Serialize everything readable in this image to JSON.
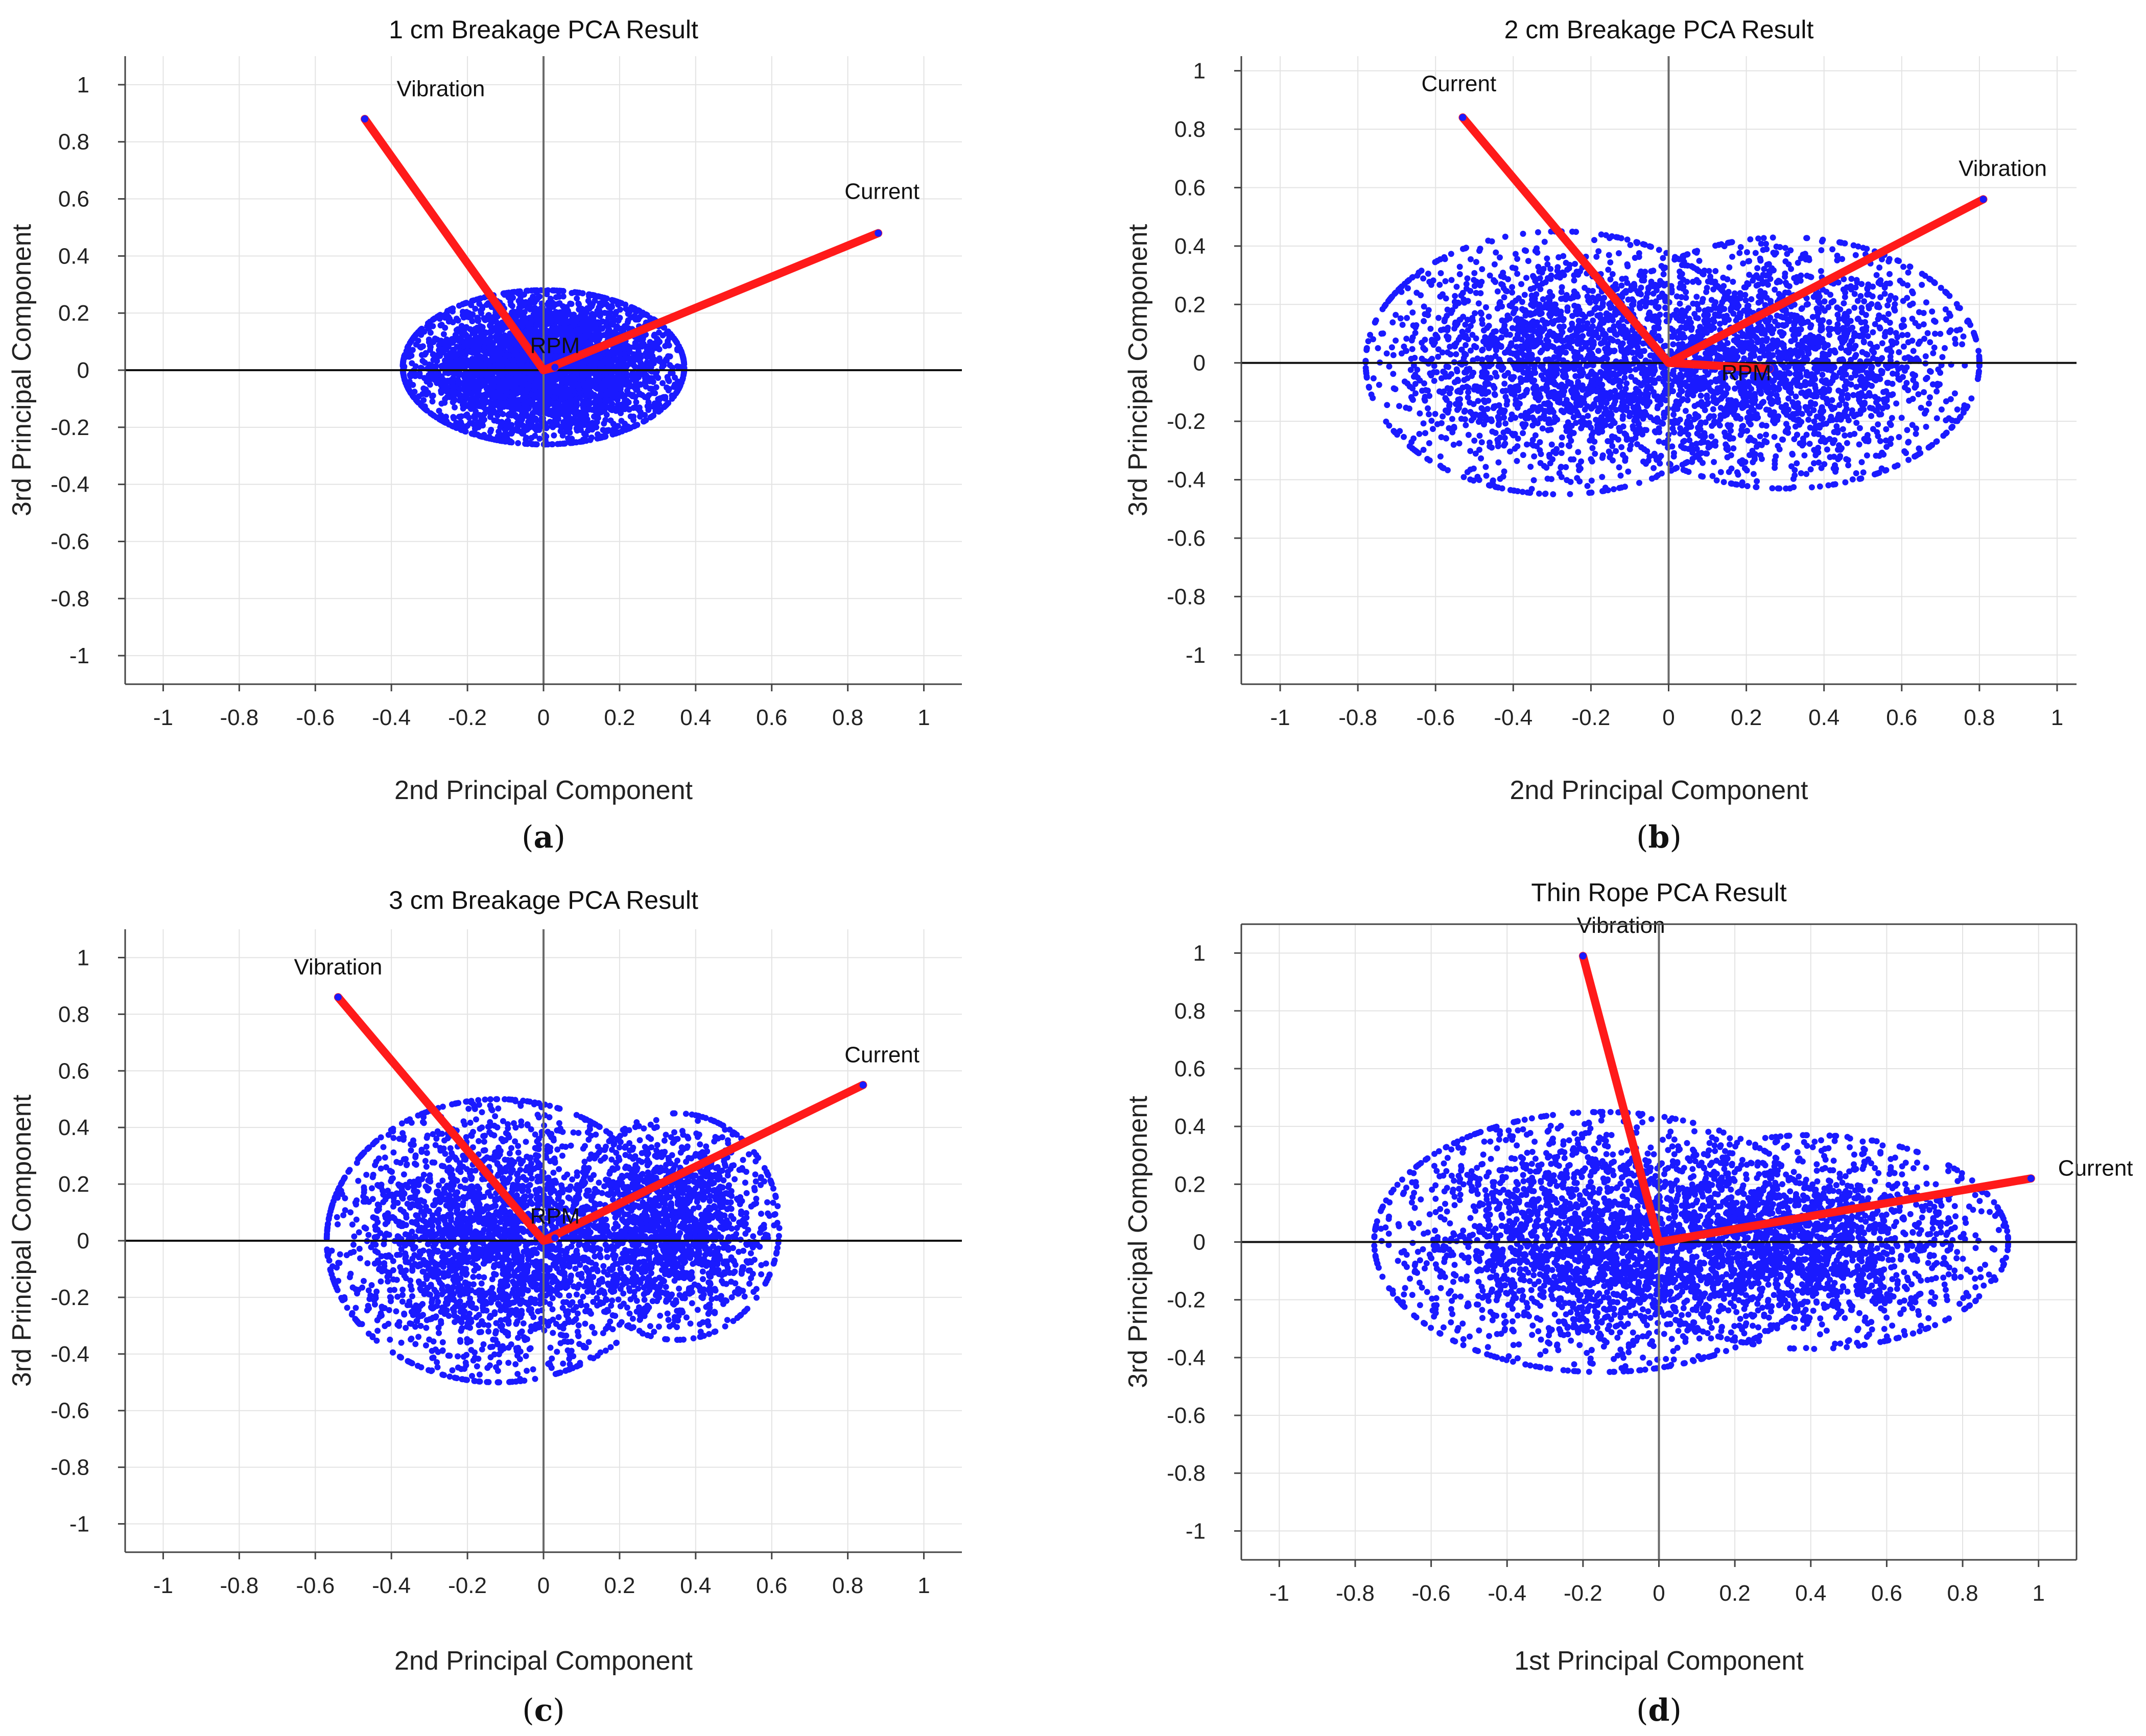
{
  "figure": {
    "colors": {
      "points": "#1a1aff",
      "loadings": "#ff1a1a",
      "axis_zero_vertical": "#6b6b6b",
      "axis_zero_horizontal": "#111111"
    }
  },
  "chart_data": [
    {
      "id": "a",
      "type": "scatter",
      "caption": "a",
      "title": "1 cm Breakage PCA Result",
      "xlabel": "2nd Principal Component",
      "ylabel": "3rd Principal Component",
      "xlim": [
        -1.1,
        1.1
      ],
      "ylim": [
        -1.1,
        1.1
      ],
      "xticks": [
        -1,
        -0.8,
        -0.6,
        -0.4,
        -0.2,
        0,
        0.2,
        0.4,
        0.6,
        0.8,
        1
      ],
      "yticks": [
        -1,
        -0.8,
        -0.6,
        -0.4,
        -0.2,
        0,
        0.2,
        0.4,
        0.6,
        0.8,
        1
      ],
      "cluster_ellipses": [
        {
          "cx": 0.0,
          "cy": 0.01,
          "rx": 0.37,
          "ry": 0.27,
          "weight": 1.0
        }
      ],
      "loadings": [
        {
          "name": "Vibration",
          "x": -0.47,
          "y": 0.88,
          "label_x": -0.27,
          "label_y": 0.96
        },
        {
          "name": "Current",
          "x": 0.88,
          "y": 0.48,
          "label_x": 0.89,
          "label_y": 0.6
        },
        {
          "name": "RPM",
          "x": 0.03,
          "y": 0.01,
          "label_x": 0.03,
          "label_y": 0.06
        }
      ]
    },
    {
      "id": "b",
      "type": "scatter",
      "caption": "b",
      "title": "2 cm Breakage PCA Result",
      "xlabel": "2nd Principal Component",
      "ylabel": "3rd Principal Component",
      "xlim": [
        -1.1,
        1.05
      ],
      "ylim": [
        -1.1,
        1.05
      ],
      "xticks": [
        -1,
        -0.8,
        -0.6,
        -0.4,
        -0.2,
        0,
        0.2,
        0.4,
        0.6,
        0.8,
        1
      ],
      "yticks": [
        -1,
        -0.8,
        -0.6,
        -0.4,
        -0.2,
        0,
        0.2,
        0.4,
        0.6,
        0.8,
        1
      ],
      "cluster_ellipses": [
        {
          "cx": -0.28,
          "cy": 0.0,
          "rx": 0.5,
          "ry": 0.45,
          "weight": 0.5
        },
        {
          "cx": 0.3,
          "cy": 0.0,
          "rx": 0.5,
          "ry": 0.43,
          "weight": 0.5
        }
      ],
      "loadings": [
        {
          "name": "Current",
          "x": -0.53,
          "y": 0.84,
          "label_x": -0.54,
          "label_y": 0.93
        },
        {
          "name": "Vibration",
          "x": 0.81,
          "y": 0.56,
          "label_x": 0.86,
          "label_y": 0.64
        },
        {
          "name": "RPM",
          "x": 0.26,
          "y": -0.02,
          "label_x": 0.2,
          "label_y": -0.06
        }
      ]
    },
    {
      "id": "c",
      "type": "scatter",
      "caption": "c",
      "title": "3 cm Breakage PCA Result",
      "xlabel": "2nd Principal Component",
      "ylabel": "3rd Principal Component",
      "xlim": [
        -1.1,
        1.1
      ],
      "ylim": [
        -1.1,
        1.1
      ],
      "xticks": [
        -1,
        -0.8,
        -0.6,
        -0.4,
        -0.2,
        0,
        0.2,
        0.4,
        0.6,
        0.8,
        1
      ],
      "yticks": [
        -1,
        -0.8,
        -0.6,
        -0.4,
        -0.2,
        0,
        0.2,
        0.4,
        0.6,
        0.8,
        1
      ],
      "cluster_ellipses": [
        {
          "cx": -0.12,
          "cy": 0.0,
          "rx": 0.45,
          "ry": 0.5,
          "weight": 0.65
        },
        {
          "cx": 0.35,
          "cy": 0.05,
          "rx": 0.27,
          "ry": 0.4,
          "weight": 0.35
        }
      ],
      "loadings": [
        {
          "name": "Vibration",
          "x": -0.54,
          "y": 0.86,
          "label_x": -0.54,
          "label_y": 0.94
        },
        {
          "name": "Current",
          "x": 0.84,
          "y": 0.55,
          "label_x": 0.89,
          "label_y": 0.63
        },
        {
          "name": "RPM",
          "x": 0.03,
          "y": 0.01,
          "label_x": 0.03,
          "label_y": 0.06
        }
      ]
    },
    {
      "id": "d",
      "type": "scatter",
      "caption": "d",
      "title": "Thin Rope PCA Result",
      "xlabel": "1st Principal Component",
      "ylabel": "3rd Principal Component",
      "xlim": [
        -1.1,
        1.1
      ],
      "ylim": [
        -1.1,
        1.1
      ],
      "xticks": [
        -1,
        -0.8,
        -0.6,
        -0.4,
        -0.2,
        0,
        0.2,
        0.4,
        0.6,
        0.8,
        1
      ],
      "yticks": [
        -1,
        -0.8,
        -0.6,
        -0.4,
        -0.2,
        0,
        0.2,
        0.4,
        0.6,
        0.8,
        1
      ],
      "cluster_ellipses": [
        {
          "cx": -0.15,
          "cy": 0.0,
          "rx": 0.6,
          "ry": 0.45,
          "weight": 0.6
        },
        {
          "cx": 0.4,
          "cy": 0.0,
          "rx": 0.52,
          "ry": 0.37,
          "weight": 0.4
        }
      ],
      "loadings": [
        {
          "name": "Vibration",
          "x": -0.2,
          "y": 0.99,
          "label_x": -0.1,
          "label_y": 1.07
        },
        {
          "name": "Current",
          "x": 0.98,
          "y": 0.22,
          "label_x": 1.15,
          "label_y": 0.23
        }
      ]
    }
  ]
}
